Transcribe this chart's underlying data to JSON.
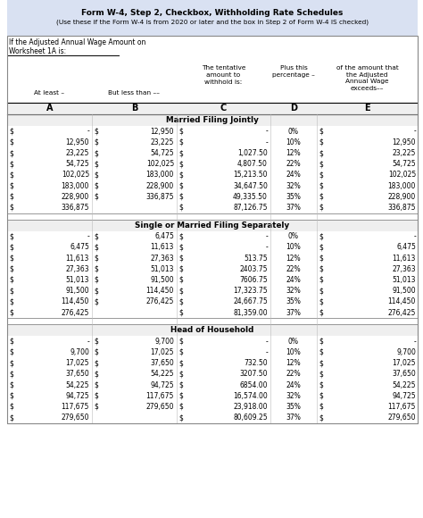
{
  "title1": "Form W-4, Step 2, Checkbox, Withholding Rate Schedules",
  "title2": "(Use these if the Form W-4 is from 2020 or later and the box in Step 2 of Form W-4 IS checked)",
  "intro_line1": "If the Adjusted Annual Wage Amount on",
  "intro_line2": "Worksheet 1A is:",
  "col_letters": [
    "A",
    "B",
    "C",
    "D",
    "E"
  ],
  "bg_title": "#d9e1f2",
  "bg_white": "#ffffff",
  "bg_gray": "#efefef",
  "line_color": "#999999",
  "sections": [
    {
      "title": "Married Filing Jointly",
      "rows": [
        [
          "-",
          "12,950",
          "-",
          "0%",
          "-"
        ],
        [
          "12,950",
          "23,225",
          "-",
          "10%",
          "12,950"
        ],
        [
          "23,225",
          "54,725",
          "1,027.50",
          "12%",
          "23,225"
        ],
        [
          "54,725",
          "102,025",
          "4,807.50",
          "22%",
          "54,725"
        ],
        [
          "102,025",
          "183,000",
          "15,213.50",
          "24%",
          "102,025"
        ],
        [
          "183,000",
          "228,900",
          "34,647.50",
          "32%",
          "183,000"
        ],
        [
          "228,900",
          "336,875",
          "49,335.50",
          "35%",
          "228,900"
        ],
        [
          "336,875",
          "",
          "87,126.75",
          "37%",
          "336,875"
        ]
      ]
    },
    {
      "title": "Single or Married Filing Separately",
      "rows": [
        [
          "-",
          "6,475",
          "-",
          "0%",
          "-"
        ],
        [
          "6,475",
          "11,613",
          "-",
          "10%",
          "6,475"
        ],
        [
          "11,613",
          "27,363",
          "513.75",
          "12%",
          "11,613"
        ],
        [
          "27,363",
          "51,013",
          "2403.75",
          "22%",
          "27,363"
        ],
        [
          "51,013",
          "91,500",
          "7606.75",
          "24%",
          "51,013"
        ],
        [
          "91,500",
          "114,450",
          "17,323.75",
          "32%",
          "91,500"
        ],
        [
          "114,450",
          "276,425",
          "24,667.75",
          "35%",
          "114,450"
        ],
        [
          "276,425",
          "",
          "81,359.00",
          "37%",
          "276,425"
        ]
      ]
    },
    {
      "title": "Head of Household",
      "rows": [
        [
          "-",
          "9,700",
          "-",
          "0%",
          "-"
        ],
        [
          "9,700",
          "17,025",
          "-",
          "10%",
          "9,700"
        ],
        [
          "17,025",
          "37,650",
          "732.50",
          "12%",
          "17,025"
        ],
        [
          "37,650",
          "54,225",
          "3207.50",
          "22%",
          "37,650"
        ],
        [
          "54,225",
          "94,725",
          "6854.00",
          "24%",
          "54,225"
        ],
        [
          "94,725",
          "117,675",
          "16,574.00",
          "32%",
          "94,725"
        ],
        [
          "117,675",
          "279,650",
          "23,918.00",
          "35%",
          "117,675"
        ],
        [
          "279,650",
          "",
          "80,609.25",
          "37%",
          "279,650"
        ]
      ]
    }
  ]
}
